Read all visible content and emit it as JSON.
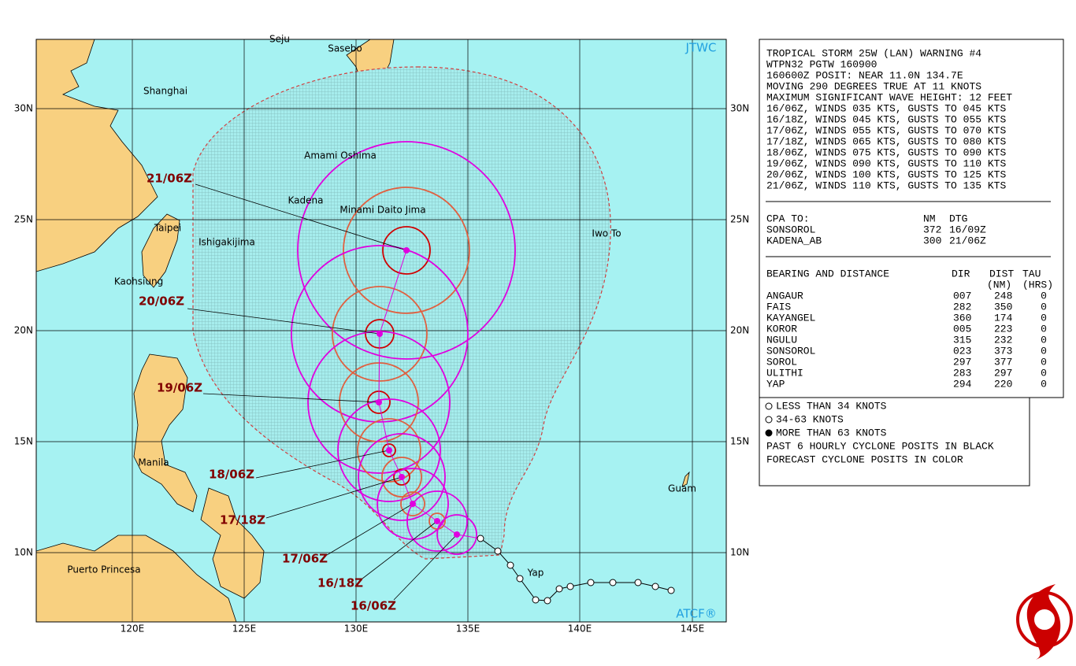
{
  "map": {
    "logo_top": "JTWC",
    "logo_bottom": "ATCF®",
    "lat_labels": [
      "30N",
      "25N",
      "20N",
      "15N",
      "10N"
    ],
    "lon_labels": [
      "120E",
      "125E",
      "130E",
      "135E",
      "140E",
      "145E"
    ],
    "places": [
      "Seju",
      "Sasebo",
      "Shanghai",
      "Amami Oshima",
      "Kadena",
      "Minami Daito Jima",
      "Taipei",
      "Ishigakijima",
      "Iwo To",
      "Kaohsiung",
      "Manila",
      "Guam",
      "Puerto Princesa",
      "Yap"
    ],
    "forecast_labels": [
      "21/06Z",
      "20/06Z",
      "19/06Z",
      "18/06Z",
      "17/18Z",
      "17/06Z",
      "16/18Z",
      "16/06Z"
    ]
  },
  "warning": {
    "lines": [
      "TROPICAL STORM 25W (LAN) WARNING #4",
      "WTPN32 PGTW 160900",
      "160600Z POSIT: NEAR 11.0N 134.7E",
      "MOVING 290 DEGREES TRUE AT 11 KNOTS",
      "MAXIMUM SIGNIFICANT WAVE HEIGHT: 12 FEET",
      "16/06Z, WINDS 035 KTS, GUSTS TO 045 KTS",
      "16/18Z, WINDS 045 KTS, GUSTS TO 055 KTS",
      "17/06Z, WINDS 055 KTS, GUSTS TO 070 KTS",
      "17/18Z, WINDS 065 KTS, GUSTS TO 080 KTS",
      "18/06Z, WINDS 075 KTS, GUSTS TO 090 KTS",
      "19/06Z, WINDS 090 KTS, GUSTS TO 110 KTS",
      "20/06Z, WINDS 100 KTS, GUSTS TO 125 KTS",
      "21/06Z, WINDS 110 KTS, GUSTS TO 135 KTS"
    ],
    "cpa": {
      "header": [
        "CPA TO:",
        "NM",
        "DTG"
      ],
      "rows": [
        [
          "SONSOROL",
          "372",
          "16/09Z"
        ],
        [
          "KADENA_AB",
          "300",
          "21/06Z"
        ]
      ]
    },
    "bearing": {
      "header": [
        "BEARING AND DISTANCE",
        "DIR",
        "DIST",
        "TAU"
      ],
      "subheader": [
        "(NM)",
        "(HRS)"
      ],
      "rows": [
        [
          "ANGAUR",
          "007",
          "248",
          "0"
        ],
        [
          "FAIS",
          "282",
          "350",
          "0"
        ],
        [
          "KAYANGEL",
          "360",
          "174",
          "0"
        ],
        [
          "KOROR",
          "005",
          "223",
          "0"
        ],
        [
          "NGULU",
          "315",
          "232",
          "0"
        ],
        [
          "SONSOROL",
          "023",
          "373",
          "0"
        ],
        [
          "SOROL",
          "297",
          "377",
          "0"
        ],
        [
          "ULITHI",
          "283",
          "297",
          "0"
        ],
        [
          "YAP",
          "294",
          "220",
          "0"
        ]
      ]
    }
  },
  "legend": {
    "items": [
      "LESS THAN 34 KNOTS",
      "34-63 KNOTS",
      "MORE THAN 63 KNOTS"
    ],
    "notes": [
      "PAST 6 HOURLY CYCLONE POSITS IN BLACK",
      "FORECAST CYCLONE POSITS IN COLOR"
    ]
  }
}
